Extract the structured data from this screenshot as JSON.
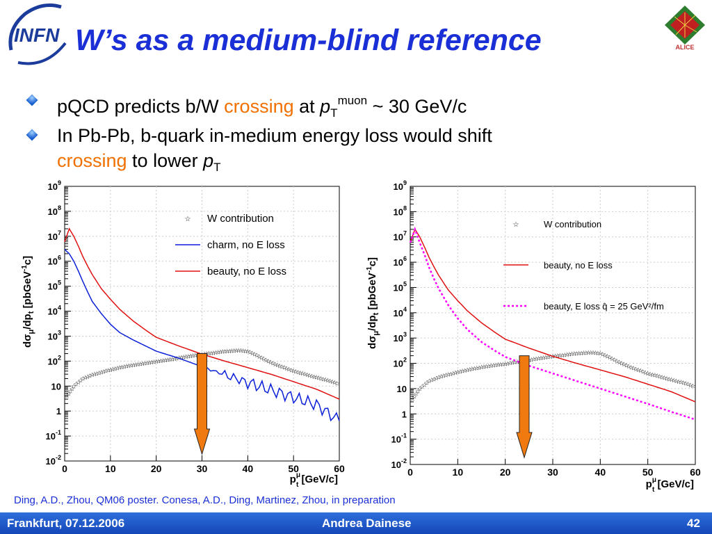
{
  "slide": {
    "title": "W’s as a medium-blind reference",
    "logo_left": "INFN",
    "logo_right": "ALICE",
    "bullets": [
      {
        "pre": "pQCD predicts b/W ",
        "highlight": "crossing",
        "post": " at ",
        "var": "p",
        "var_sub": "T",
        "var_sup": "muon",
        "tail": " ~ 30 GeV/c"
      },
      {
        "line1": "In Pb-Pb, b-quark in-medium energy loss would shift",
        "highlight": "crossing",
        "post": " to lower ",
        "var": "p",
        "var_sub": "T"
      }
    ],
    "reference": "Ding, A.D., Zhou, QM06 poster. Conesa, A.D., Ding, Martinez, Zhou, in preparation",
    "footer": {
      "left": "Frankfurt, 07.12.2006",
      "center": "Andrea Dainese",
      "right": "42"
    }
  },
  "colors": {
    "title": "#1a2fd6",
    "highlight": "#f07000",
    "charm": "#0a1fd8",
    "beauty": "#e01010",
    "beauty_eloss": "#ff00ff",
    "arrow": "#f07a10",
    "footer": "#1f55c8"
  },
  "chart_data": [
    {
      "type": "line",
      "ylabel_main": "dσ",
      "ylabel_mu": "μ",
      "ylabel_rest": "/dp",
      "ylabel_t": "t",
      "ylabel_unit": " [pbGeV",
      "ylabel_exp": "-1",
      "ylabel_close": "c]",
      "xlabel_main": "p",
      "xlabel_sub": "t",
      "xlabel_sup": "μ",
      "xlabel_unit": " [GeV/c]",
      "xlim": [
        0,
        60
      ],
      "ylog": true,
      "ylim": [
        0.01,
        1000000000
      ],
      "xticks": [
        "0",
        "10",
        "20",
        "30",
        "40",
        "50",
        "60"
      ],
      "yticks": [
        {
          "b": "10",
          "e": "-2"
        },
        {
          "b": "10",
          "e": "-1"
        },
        {
          "b": "1",
          "e": ""
        },
        {
          "b": "10",
          "e": ""
        },
        {
          "b": "10",
          "e": "2"
        },
        {
          "b": "10",
          "e": "3"
        },
        {
          "b": "10",
          "e": "4"
        },
        {
          "b": "10",
          "e": "5"
        },
        {
          "b": "10",
          "e": "6"
        },
        {
          "b": "10",
          "e": "7"
        },
        {
          "b": "10",
          "e": "8"
        },
        {
          "b": "10",
          "e": "9"
        }
      ],
      "legend": [
        "W contribution",
        "charm, no E loss",
        "beauty, no E loss"
      ],
      "arrow_x": 30,
      "series": [
        {
          "name": "W contribution",
          "style": "star",
          "x": [
            0.5,
            2,
            4,
            6,
            8,
            10,
            12,
            14,
            16,
            18,
            20,
            22,
            24,
            26,
            28,
            30,
            32,
            34,
            36,
            38,
            40,
            42,
            44,
            46,
            48,
            50,
            52,
            54,
            56,
            58,
            60
          ],
          "y": [
            4,
            10,
            20,
            28,
            36,
            45,
            55,
            65,
            75,
            85,
            95,
            110,
            125,
            145,
            165,
            190,
            210,
            235,
            255,
            270,
            250,
            170,
            110,
            75,
            55,
            40,
            32,
            25,
            20,
            16,
            12
          ]
        },
        {
          "name": "charm, no E loss",
          "style": "charm",
          "x": [
            0,
            1,
            2,
            3,
            4,
            5,
            6,
            8,
            10,
            12,
            15,
            18,
            20,
            25,
            30,
            35,
            40,
            45,
            50,
            55,
            60
          ],
          "y": [
            3000000,
            2000000,
            1000000,
            400000,
            150000,
            60000,
            25000,
            8000,
            3000,
            1400,
            700,
            380,
            250,
            130,
            60,
            28,
            14,
            7,
            3.5,
            1.8,
            0.4
          ]
        },
        {
          "name": "beauty, no E loss",
          "style": "beauty",
          "x": [
            0,
            1,
            2,
            3,
            4,
            5,
            6,
            8,
            10,
            12,
            15,
            18,
            20,
            25,
            30,
            35,
            40,
            45,
            50,
            55,
            60
          ],
          "y": [
            6000000,
            20000000,
            10000000,
            4000000,
            1500000,
            650000,
            300000,
            80000,
            30000,
            12000,
            4000,
            1600,
            900,
            400,
            190,
            100,
            55,
            30,
            15,
            7.5,
            3
          ]
        }
      ]
    },
    {
      "type": "line",
      "ylabel_main": "dσ",
      "ylabel_mu": "μ",
      "ylabel_rest": "/dp",
      "ylabel_t": "t",
      "ylabel_unit": " [pbGeV",
      "ylabel_exp": "-1",
      "ylabel_close": "c]",
      "xlabel_main": "p",
      "xlabel_sub": "t",
      "xlabel_sup": "μ",
      "xlabel_unit": " [GeV/c]",
      "xlim": [
        0,
        60
      ],
      "ylog": true,
      "ylim": [
        0.01,
        1000000000
      ],
      "xticks": [
        "0",
        "10",
        "20",
        "30",
        "40",
        "50",
        "60"
      ],
      "yticks": [
        {
          "b": "10",
          "e": "-2"
        },
        {
          "b": "10",
          "e": "-1"
        },
        {
          "b": "1",
          "e": ""
        },
        {
          "b": "10",
          "e": ""
        },
        {
          "b": "10",
          "e": "2"
        },
        {
          "b": "10",
          "e": "3"
        },
        {
          "b": "10",
          "e": "4"
        },
        {
          "b": "10",
          "e": "5"
        },
        {
          "b": "10",
          "e": "6"
        },
        {
          "b": "10",
          "e": "7"
        },
        {
          "b": "10",
          "e": "8"
        },
        {
          "b": "10",
          "e": "9"
        }
      ],
      "legend": [
        "W contribution",
        "beauty, no E loss",
        "beauty, E loss q̂ = 25 GeV²/fm"
      ],
      "arrow_x": 24,
      "series": [
        {
          "name": "W contribution",
          "style": "star",
          "x": [
            0.5,
            2,
            4,
            6,
            8,
            10,
            12,
            14,
            16,
            18,
            20,
            22,
            24,
            26,
            28,
            30,
            32,
            34,
            36,
            38,
            40,
            42,
            44,
            46,
            48,
            50,
            52,
            54,
            56,
            58,
            60
          ],
          "y": [
            4,
            10,
            20,
            28,
            36,
            45,
            55,
            65,
            75,
            85,
            95,
            110,
            125,
            145,
            165,
            190,
            210,
            235,
            255,
            270,
            250,
            170,
            110,
            75,
            55,
            40,
            32,
            25,
            20,
            16,
            12
          ]
        },
        {
          "name": "beauty, no E loss",
          "style": "beauty",
          "x": [
            0,
            1,
            2,
            3,
            4,
            5,
            6,
            8,
            10,
            12,
            15,
            18,
            20,
            25,
            30,
            35,
            40,
            45,
            50,
            55,
            60
          ],
          "y": [
            6000000,
            20000000,
            10000000,
            4000000,
            1500000,
            650000,
            300000,
            80000,
            30000,
            12000,
            4000,
            1600,
            900,
            400,
            190,
            100,
            55,
            30,
            15,
            7.5,
            3
          ]
        },
        {
          "name": "beauty, E loss q̂ = 25 GeV²/fm",
          "style": "eloss",
          "x": [
            0,
            1,
            2,
            3,
            4,
            5,
            6,
            8,
            10,
            12,
            15,
            18,
            20,
            25,
            30,
            35,
            40,
            45,
            50,
            55,
            60
          ],
          "y": [
            6000000,
            20000000,
            6000000,
            2000000,
            600000,
            220000,
            90000,
            20000,
            6000,
            2200,
            700,
            300,
            180,
            80,
            40,
            20,
            10,
            5,
            2.5,
            1.2,
            0.6
          ]
        }
      ]
    }
  ]
}
